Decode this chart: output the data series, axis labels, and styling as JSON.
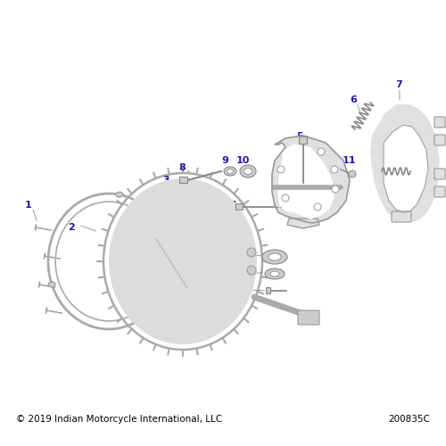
{
  "bg_color": "#ffffff",
  "label_color": "#1a1aaa",
  "line_color": "#888888",
  "part_color": "#e0e0e0",
  "part_edge_color": "#999999",
  "copyright_text": "© 2019 Indian Motorcycle International, LLC",
  "part_number_text": "200835C",
  "copyright_fontsize": 7.5,
  "part_number_fontsize": 7.5,
  "figsize": [
    5.0,
    5.0
  ],
  "dpi": 100
}
